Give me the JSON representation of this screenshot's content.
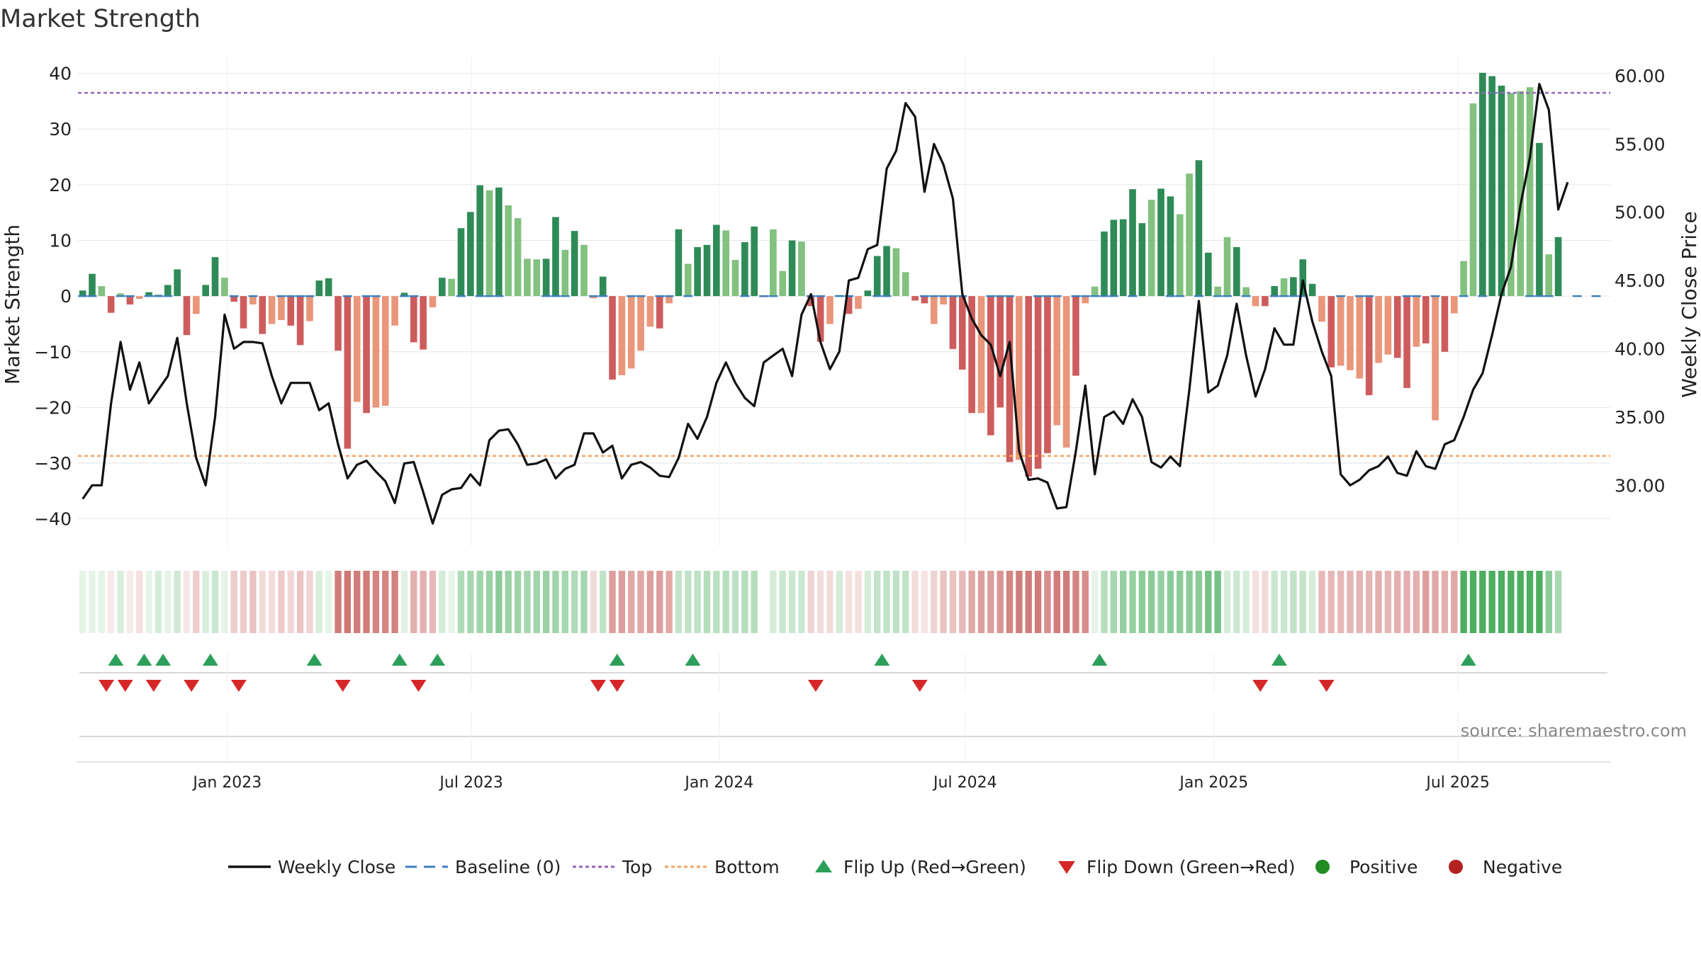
{
  "chart_data": {
    "type": "bar",
    "title": "Market Strength",
    "source": "source: sharemaestro.com",
    "ylabel_left": "Market Strength",
    "ylabel_right": "Weekly Close Price",
    "ylim_left": [
      -45,
      43
    ],
    "ylim_right": [
      25.5,
      61.4
    ],
    "yticks_left": [
      40,
      30,
      20,
      10,
      0,
      -10,
      -20,
      -30,
      -40
    ],
    "yticks_left_labels": [
      "40",
      "30",
      "20",
      "10",
      "0",
      "−10",
      "−20",
      "−30",
      "−40"
    ],
    "yticks_right": [
      60,
      55,
      50,
      45,
      40,
      35,
      30
    ],
    "yticks_right_labels": [
      "60.00",
      "55.00",
      "50.00",
      "45.00",
      "40.00",
      "35.00",
      "30.00"
    ],
    "top_level": 36.5,
    "bottom_level": -28.7,
    "x_weeks_total": 162,
    "x_range_weeks": [
      -0.5,
      161.5
    ],
    "xticks": [
      {
        "label": "Jan 2023",
        "week": 15.3
      },
      {
        "label": "Jul 2023",
        "week": 41.1
      },
      {
        "label": "Jan 2024",
        "week": 67.3
      },
      {
        "label": "Jul 2024",
        "week": 93.3
      },
      {
        "label": "Jan 2025",
        "week": 119.6
      },
      {
        "label": "Jul 2025",
        "week": 145.4
      }
    ],
    "strength": [
      1,
      4,
      1.8,
      -3,
      0.5,
      -1.5,
      -0.5,
      0.7,
      0.3,
      2,
      4.8,
      -7,
      -3.2,
      2,
      7,
      3.3,
      -1,
      -5.8,
      -1.5,
      -6.8,
      -5,
      -4.3,
      -5.3,
      -8.8,
      -4.5,
      2.8,
      3.2,
      -9.8,
      -27.4,
      -19,
      -21,
      -20,
      -19.7,
      -5.3,
      0.6,
      -8.3,
      -9.6,
      -2,
      3.3,
      3.1,
      12.2,
      15.1,
      19.9,
      19,
      19.5,
      16.3,
      14,
      6.7,
      6.6,
      6.7,
      14.2,
      8.3,
      11.7,
      9.2,
      -0.4,
      3.5,
      -15,
      -14.2,
      -13,
      -9.8,
      -5.5,
      -5.8,
      -1.3,
      12,
      5.8,
      8.8,
      9.2,
      12.8,
      11.8,
      6.5,
      9.7,
      12.5,
      -0.2,
      12,
      4.5,
      10,
      9.8,
      -1.8,
      -8.2,
      -5,
      0.2,
      -3.2,
      -2.3,
      1,
      7.2,
      9,
      8.6,
      4.3,
      -0.8,
      -1.3,
      -5,
      -1.5,
      -9.5,
      -13.2,
      -21,
      -21,
      -25,
      -20,
      -29.8,
      -29.4,
      -32.4,
      -31,
      -28.2,
      -23.2,
      -27.2,
      -14.3,
      -1.3,
      1.7,
      11.6,
      13.7,
      13.8,
      19.2,
      13.1,
      17.3,
      19.3,
      17.9,
      14.7,
      22,
      24.4,
      7.8,
      1.7,
      10.6,
      8.8,
      1.6,
      -1.8,
      -1.8,
      1.8,
      3.2,
      3.4,
      6.6,
      2.2,
      -4.6,
      -12.8,
      -12.5,
      -13.3,
      -14.8,
      -17.8,
      -12,
      -10.5,
      -11.1,
      -16.5,
      -9.1,
      -8.5,
      -22.3,
      -10,
      -3.1,
      6.3,
      34.6,
      40.1,
      39.5,
      37.8,
      36.5,
      36.8,
      37.5,
      27.5,
      7.5,
      10.6
    ],
    "bar_shade": [
      "d",
      "d",
      "l",
      "d",
      "l",
      "d",
      "l",
      "d",
      "l",
      "d",
      "d",
      "d",
      "l",
      "d",
      "d",
      "l",
      "d",
      "d",
      "l",
      "d",
      "l",
      "l",
      "d",
      "d",
      "l",
      "d",
      "d",
      "d",
      "d",
      "l",
      "d",
      "l",
      "l",
      "l",
      "d",
      "d",
      "d",
      "l",
      "d",
      "l",
      "d",
      "d",
      "d",
      "l",
      "d",
      "l",
      "l",
      "l",
      "l",
      "d",
      "d",
      "l",
      "d",
      "l",
      "l",
      "d",
      "d",
      "l",
      "l",
      "l",
      "l",
      "d",
      "l",
      "d",
      "l",
      "d",
      "d",
      "d",
      "l",
      "l",
      "d",
      "d",
      "l",
      "l",
      "l",
      "d",
      "l",
      "d",
      "d",
      "l",
      "l",
      "d",
      "l",
      "d",
      "d",
      "d",
      "l",
      "l",
      "d",
      "d",
      "l",
      "l",
      "d",
      "d",
      "d",
      "l",
      "d",
      "d",
      "d",
      "l",
      "d",
      "d",
      "d",
      "l",
      "l",
      "d",
      "l",
      "l",
      "d",
      "d",
      "d",
      "d",
      "d",
      "l",
      "d",
      "d",
      "l",
      "l",
      "d",
      "d",
      "l",
      "l",
      "d",
      "l",
      "l",
      "d",
      "d",
      "l",
      "d",
      "d",
      "d",
      "l",
      "d",
      "l",
      "l",
      "l",
      "d",
      "l",
      "l",
      "d",
      "d",
      "l",
      "d",
      "l",
      "d",
      "l",
      "l",
      "l",
      "d",
      "d",
      "d",
      "l",
      "l",
      "l",
      "d",
      "l",
      "d",
      "l",
      "l",
      "l",
      "d",
      "d"
    ],
    "baseline_markers": [
      0,
      1,
      4,
      5,
      7,
      8,
      9,
      16,
      18,
      21,
      22,
      23,
      24,
      28,
      30,
      31,
      34,
      35,
      40,
      42,
      43,
      44,
      49,
      50,
      51,
      54,
      55,
      58,
      59,
      61,
      62,
      64,
      70,
      72,
      73,
      77,
      78,
      80,
      81,
      84,
      85,
      89,
      90,
      91,
      92,
      93,
      96,
      97,
      98,
      101,
      102,
      103,
      105,
      106,
      107,
      108,
      109,
      111,
      115,
      116,
      118,
      120,
      121,
      123,
      126,
      127,
      128,
      129,
      133,
      135,
      136,
      140,
      141,
      143,
      146,
      148,
      153,
      154,
      155,
      158,
      160
    ],
    "close": [
      29,
      30,
      30,
      36,
      40.5,
      37,
      39,
      36,
      37,
      38,
      40.8,
      36,
      32,
      30,
      35,
      42.5,
      40,
      40.5,
      40.5,
      40.4,
      38,
      36,
      37.5,
      37.5,
      37.5,
      35.5,
      36,
      33,
      30.5,
      31.5,
      31.8,
      31,
      30.3,
      28.7,
      31.6,
      31.7,
      29.5,
      27.2,
      29.3,
      29.7,
      29.8,
      30.8,
      30,
      33.3,
      34,
      34.1,
      33,
      31.5,
      31.6,
      31.9,
      30.5,
      31.2,
      31.5,
      33.8,
      33.8,
      32.4,
      32.9,
      30.5,
      31.5,
      31.7,
      31.3,
      30.7,
      30.6,
      32,
      34.5,
      33.4,
      35,
      37.5,
      39,
      37.5,
      36.4,
      35.8,
      39,
      39.5,
      40,
      38,
      42.5,
      44,
      40.5,
      38.5,
      39.8,
      45,
      45.2,
      47.3,
      47.6,
      53.2,
      54.5,
      58,
      57,
      51.5,
      55,
      53.5,
      51,
      44,
      42.2,
      41,
      40.3,
      38,
      40.5,
      32.5,
      30.4,
      30.5,
      30.2,
      28.3,
      28.4,
      32.5,
      37.3,
      30.8,
      35,
      35.4,
      34.5,
      36.3,
      35,
      31.7,
      31.3,
      32.1,
      31.4,
      37,
      43.5,
      36.8,
      37.3,
      39.5,
      43.3,
      39.5,
      36.5,
      38.5,
      41.5,
      40.3,
      40.3,
      45,
      42,
      39.8,
      38,
      30.8,
      30,
      30.4,
      31.1,
      31.4,
      32.1,
      30.9,
      30.7,
      32.5,
      31.4,
      31.2,
      33,
      33.3,
      35,
      37,
      38.2,
      41,
      44,
      46,
      50.5,
      54,
      59.4,
      57.5,
      50.2,
      52.2
    ],
    "band_values": [
      0.12,
      0.08,
      0.12,
      0.05,
      0.18,
      0.05,
      0.18,
      0.02,
      0.2,
      0.03,
      0.22,
      0.14,
      0.28,
      0.18,
      0.25,
      0.08,
      0.28,
      0.3,
      0.35,
      0.2,
      0.2,
      0.3,
      0.23,
      0.34,
      0.24,
      0.18,
      0.12,
      0.75,
      0.78,
      0.75,
      0.75,
      0.7,
      0.7,
      0.72,
      0.14,
      0.45,
      0.45,
      0.4,
      0.2,
      0.12,
      0.38,
      0.42,
      0.45,
      0.48,
      0.55,
      0.48,
      0.45,
      0.42,
      0.45,
      0.48,
      0.45,
      0.42,
      0.38,
      0.42,
      0.2,
      0.3,
      0.55,
      0.55,
      0.5,
      0.5,
      0.55,
      0.55,
      0.5,
      0.28,
      0.3,
      0.3,
      0.35,
      0.32,
      0.35,
      0.32,
      0.35,
      0.35,
      null,
      0.2,
      0.25,
      0.25,
      0.25,
      0.25,
      0.2,
      0.2,
      0.2,
      0.18,
      0.18,
      0.2,
      0.28,
      0.3,
      0.3,
      0.3,
      0.2,
      0.15,
      0.25,
      0.35,
      0.35,
      0.4,
      0.5,
      0.55,
      0.55,
      0.6,
      0.7,
      0.75,
      0.75,
      0.75,
      0.65,
      0.75,
      0.75,
      0.7,
      0.65,
      0.1,
      0.35,
      0.42,
      0.5,
      0.5,
      0.55,
      0.55,
      0.5,
      0.55,
      0.55,
      0.55,
      0.55,
      0.65,
      0.65,
      0.2,
      0.25,
      0.2,
      0.18,
      0.2,
      0.25,
      0.25,
      0.3,
      0.28,
      0.2,
      0.4,
      0.4,
      0.4,
      0.42,
      0.42,
      0.42,
      0.45,
      0.42,
      0.45,
      0.45,
      0.45,
      0.55,
      0.5,
      0.45,
      0.5,
      0.85,
      0.85,
      0.85,
      0.85,
      0.85,
      0.85,
      0.85,
      0.85,
      0.85,
      0.55,
      0.4
    ],
    "flip_up_weeks": [
      3.5,
      6.5,
      8.5,
      13.5,
      24.5,
      33.5,
      37.5,
      56.5,
      64.5,
      84.5,
      107.5,
      126.5,
      146.5
    ],
    "flip_down_weeks": [
      2.5,
      4.5,
      7.5,
      11.5,
      16.5,
      27.5,
      35.5,
      54.5,
      56.5,
      77.5,
      88.5,
      124.5,
      131.5
    ],
    "legend": [
      {
        "type": "line",
        "label": "Weekly Close"
      },
      {
        "type": "dash",
        "label": "Baseline (0)"
      },
      {
        "type": "dot-purple",
        "label": "Top"
      },
      {
        "type": "dot-orange",
        "label": "Bottom"
      },
      {
        "type": "tri-up",
        "label": "Flip Up (Red→Green)"
      },
      {
        "type": "tri-down",
        "label": "Flip Down (Green→Red)"
      },
      {
        "type": "dot-green",
        "label": "Positive"
      },
      {
        "type": "dot-red",
        "label": "Negative"
      }
    ],
    "colors": {
      "pos_dark": "#2e8b57",
      "pos_light": "#82c17f",
      "neg_dark": "#cd5c5c",
      "neg_light": "#e9967a",
      "close": "#111111",
      "baseline": "#3d7fbf",
      "top": "#9467bd",
      "bottom": "#f4a460",
      "flip_up": "#2ca05a",
      "flip_down": "#d62728",
      "positive": "#228b22",
      "negative": "#b22222",
      "grid": "#e6e6e6",
      "text": "#222222",
      "source": "#888888"
    }
  }
}
